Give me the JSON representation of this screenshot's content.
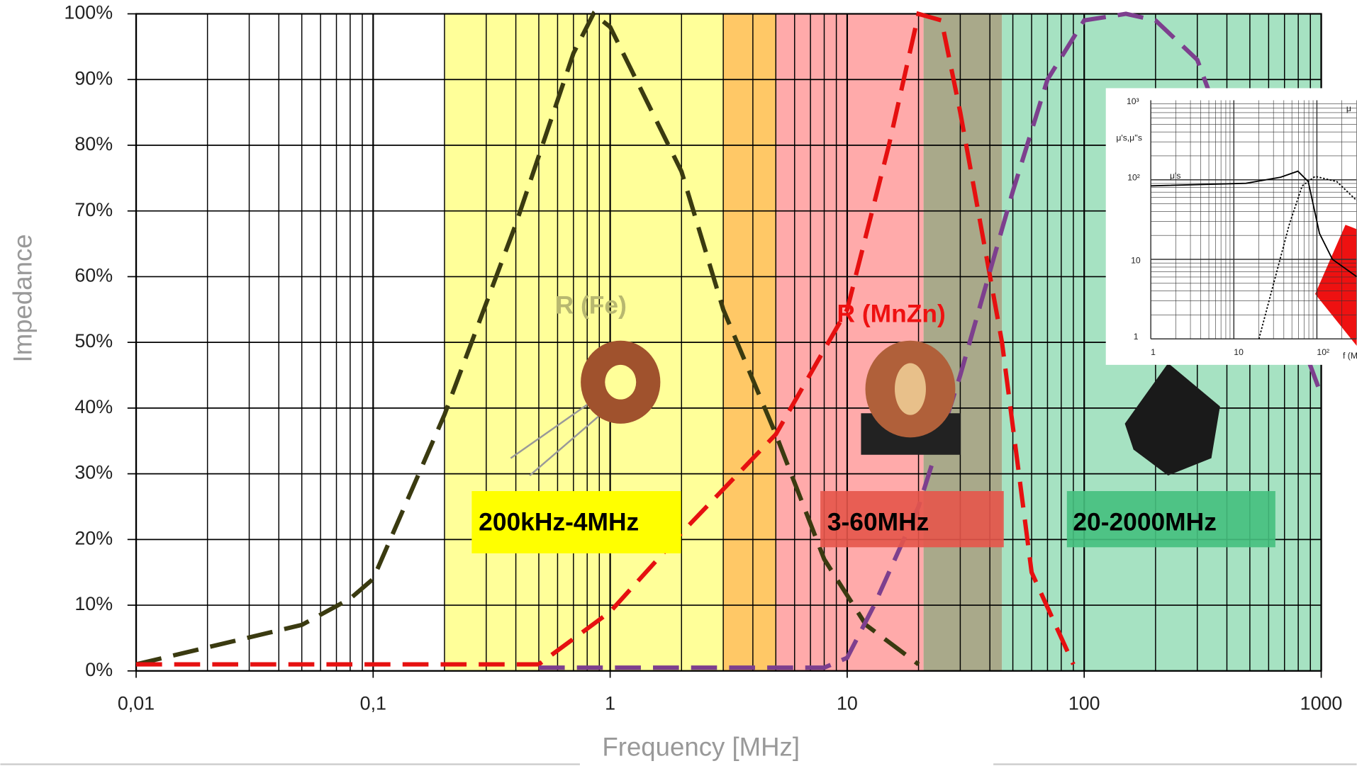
{
  "chart_data": {
    "type": "line",
    "x_label": "Frequency [MHz]",
    "y_label": "Impedance",
    "xlog": true,
    "xlim": [
      0.01,
      1000
    ],
    "xticks": [
      {
        "value": 0.01,
        "label": "0,01"
      },
      {
        "value": 0.1,
        "label": "0,1"
      },
      1,
      10,
      100,
      1000
    ],
    "ylim": [
      0,
      100
    ],
    "yticks": [
      {
        "value": 0,
        "label": "0%"
      },
      {
        "value": 10,
        "label": "10%"
      },
      {
        "value": 20,
        "label": "20%"
      },
      {
        "value": 30,
        "label": "30%"
      },
      {
        "value": 40,
        "label": "40%"
      },
      {
        "value": 50,
        "label": "50%"
      },
      {
        "value": 60,
        "label": "60%"
      },
      {
        "value": 70,
        "label": "70%"
      },
      {
        "value": 80,
        "label": "80%"
      },
      {
        "value": 90,
        "label": "90%"
      },
      {
        "value": 100,
        "label": "100%"
      }
    ],
    "grid": true,
    "minor_grid": true,
    "regions": [
      {
        "from": 0.2,
        "to": 3,
        "color": "#ffff99"
      },
      {
        "from": 3,
        "to": 5,
        "color": "#ffc866"
      },
      {
        "from": 5,
        "to": 21,
        "color": "#ffaaaa"
      },
      {
        "from": 21,
        "to": 45,
        "color": "#a9a98a"
      },
      {
        "from": 45,
        "to": 1000,
        "color": "#a6e2c2"
      }
    ],
    "annotations": [
      {
        "text": "200kHz-4MHz",
        "color": "#ffff00"
      },
      {
        "text": "3-60MHz",
        "color": "#e5554a"
      },
      {
        "text": "20-2000MHz",
        "color": "#45c07e"
      },
      {
        "text": "R (Fe)",
        "color": "#b8b870"
      },
      {
        "text": "R (MnZn)",
        "color": "#ee1111"
      }
    ],
    "series": [
      {
        "color": "#3a3a10",
        "x": [
          0.01,
          0.05,
          0.08,
          0.1,
          0.2,
          0.4,
          0.7,
          0.85,
          1,
          2,
          3,
          5,
          8,
          12,
          20
        ],
        "values": [
          1,
          7,
          11,
          14,
          39,
          68,
          94,
          100,
          98,
          76,
          55,
          36,
          17,
          7,
          1
        ]
      },
      {
        "color": "#e61010",
        "x": [
          0.01,
          0.5,
          1,
          2,
          5,
          10,
          15,
          20,
          25,
          30,
          45,
          60,
          90
        ],
        "values": [
          1,
          1,
          9,
          21,
          36,
          55,
          80,
          100,
          99,
          85,
          50,
          15,
          1
        ]
      },
      {
        "color": "#7d3f8e",
        "x": [
          0.5,
          8,
          10,
          13,
          20,
          30,
          50,
          70,
          100,
          150,
          200,
          300,
          1000
        ],
        "values": [
          0.5,
          0.5,
          2,
          10,
          25,
          45,
          73,
          90,
          99,
          100,
          99,
          93,
          42
        ]
      }
    ],
    "inset": {
      "labels": [
        "10³",
        "μ's,μ''s",
        "10²",
        "μ's",
        "10",
        "1",
        "1",
        "10",
        "10²",
        "f (M",
        "μ"
      ]
    }
  }
}
